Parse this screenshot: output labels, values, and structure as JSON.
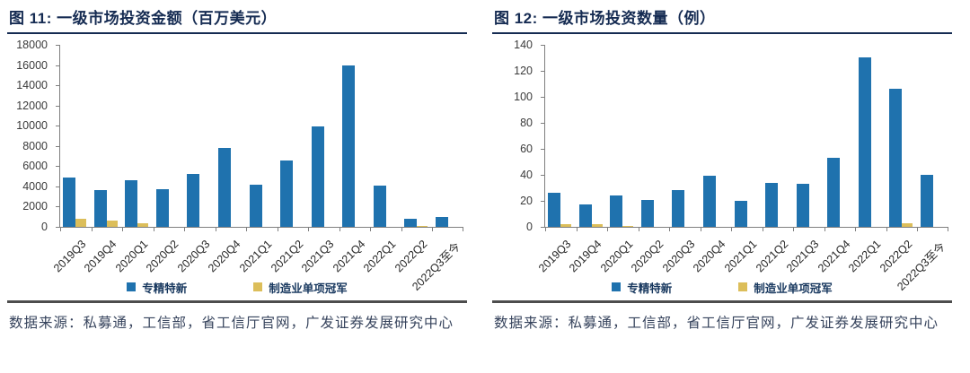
{
  "colors": {
    "title_navy": "#152B52",
    "legend_text_navy": "#17375E",
    "source_text": "#36435C",
    "divider_gray": "#4d4d4d",
    "bar_blue": "#1F72AE",
    "bar_yellow": "#DCBE5A"
  },
  "figures": [
    {
      "title": "图 11:  一级市场投资金额（百万美元）",
      "source": "数据来源：私募通，工信部，省工信厅官网，广发证券发展研究中心"
    },
    {
      "title": "图 12:  一级市场投资数量（例）",
      "source": "数据来源：私募通，工信部，省工信厅官网，广发证券发展研究中心"
    }
  ],
  "chart_data": [
    {
      "type": "bar",
      "title": "一级市场投资金额（百万美元）",
      "categories": [
        "2019Q3",
        "2019Q4",
        "2020Q1",
        "2020Q2",
        "2020Q3",
        "2020Q4",
        "2021Q1",
        "2021Q2",
        "2021Q3",
        "2021Q4",
        "2022Q1",
        "2022Q2",
        "2022Q3至今"
      ],
      "series": [
        {
          "name": "专精特新",
          "color": "#1F72AE",
          "values": [
            4900,
            3600,
            4600,
            3700,
            5200,
            7800,
            4200,
            6600,
            9900,
            16000,
            4100,
            800,
            950
          ]
        },
        {
          "name": "制造业单项冠军",
          "color": "#DCBE5A",
          "values": [
            800,
            650,
            350,
            0,
            0,
            0,
            0,
            0,
            0,
            0,
            0,
            100,
            0
          ]
        }
      ],
      "xlabel": "",
      "ylabel": "",
      "ylim": [
        0,
        18000
      ],
      "ystep": 2000,
      "grid": false,
      "legend_position": "bottom"
    },
    {
      "type": "bar",
      "title": "一级市场投资数量（例）",
      "categories": [
        "2019Q3",
        "2019Q4",
        "2020Q1",
        "2020Q2",
        "2020Q3",
        "2020Q4",
        "2021Q1",
        "2021Q2",
        "2021Q3",
        "2021Q4",
        "2022Q1",
        "2022Q2",
        "2022Q3至今"
      ],
      "series": [
        {
          "name": "专精特新",
          "color": "#1F72AE",
          "values": [
            26,
            17,
            24,
            21,
            28,
            39,
            20,
            34,
            33,
            53,
            130,
            106,
            40
          ]
        },
        {
          "name": "制造业单项冠军",
          "color": "#DCBE5A",
          "values": [
            2,
            2,
            1,
            0,
            0,
            0,
            0,
            0,
            0,
            0,
            0,
            3,
            0
          ]
        }
      ],
      "xlabel": "",
      "ylabel": "",
      "ylim": [
        0,
        140
      ],
      "ystep": 20,
      "grid": false,
      "legend_position": "bottom"
    }
  ]
}
